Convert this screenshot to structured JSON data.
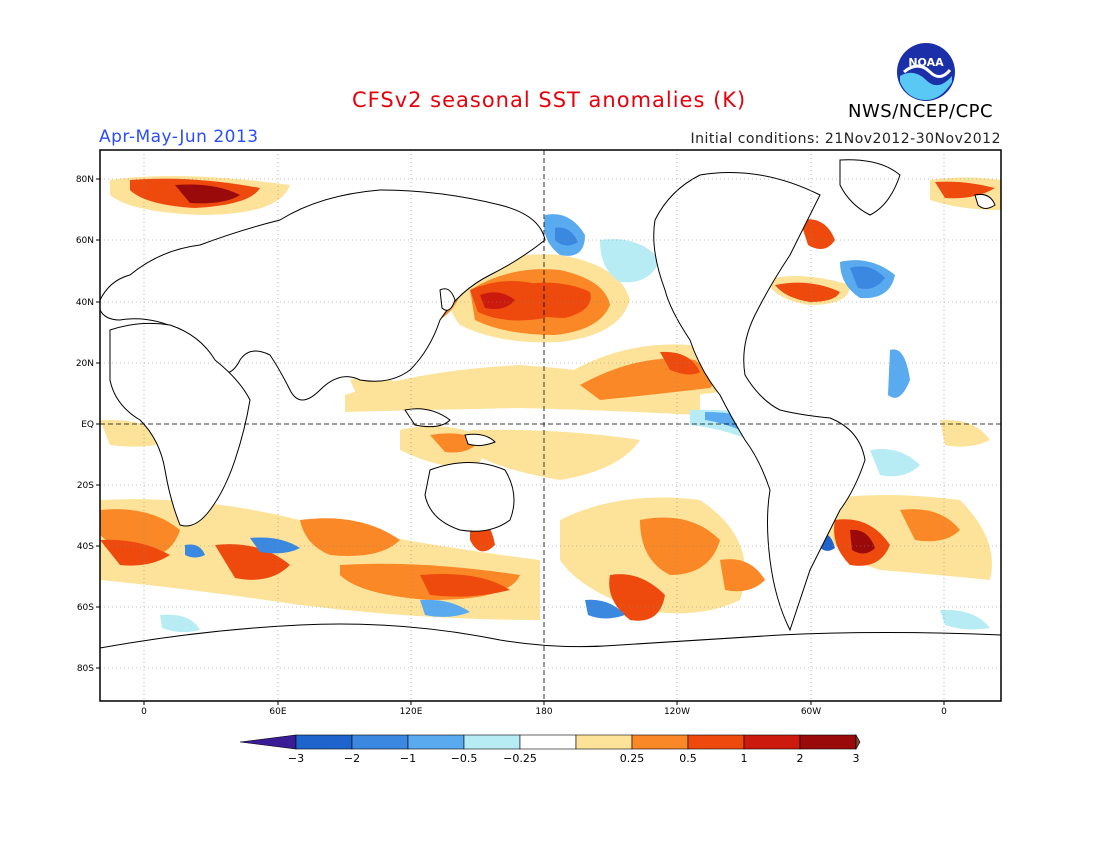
{
  "title": "CFSv2 seasonal SST anomalies (K)",
  "period": "Apr-May-Jun 2013",
  "initial_conditions": "Initial conditions: 21Nov2012-30Nov2012",
  "agency": "NWS/NCEP/CPC",
  "logo_text": "NOAA",
  "colors": {
    "c_m3": "#3a1d96",
    "c_m2": "#1f64cc",
    "c_m1": "#3b88e0",
    "c_m05": "#5aaaf0",
    "c_m025": "#b8ecf5",
    "c_0": "#ffffff",
    "c_025": "#fde39a",
    "c_05": "#fb8826",
    "c_1": "#ee4a0e",
    "c_2": "#cc1a0e",
    "c_3": "#9a0a0a",
    "c_max": "#7b4a33"
  },
  "lat_labels": [
    "80N",
    "60N",
    "40N",
    "20N",
    "EQ",
    "20S",
    "40S",
    "60S",
    "80S"
  ],
  "lon_labels": [
    "0",
    "60E",
    "120E",
    "180",
    "120W",
    "60W",
    "0"
  ],
  "colorbar": {
    "labels": [
      "-3",
      "-2",
      "-1",
      "-0.5",
      "-0.25",
      "0.25",
      "0.5",
      "1",
      "2",
      "3"
    ],
    "colors": [
      "#1f64cc",
      "#3b88e0",
      "#5aaaf0",
      "#b8ecf5",
      "#ffffff",
      "#fde39a",
      "#fb8826",
      "#ee4a0e",
      "#cc1a0e",
      "#9a0a0a"
    ]
  }
}
